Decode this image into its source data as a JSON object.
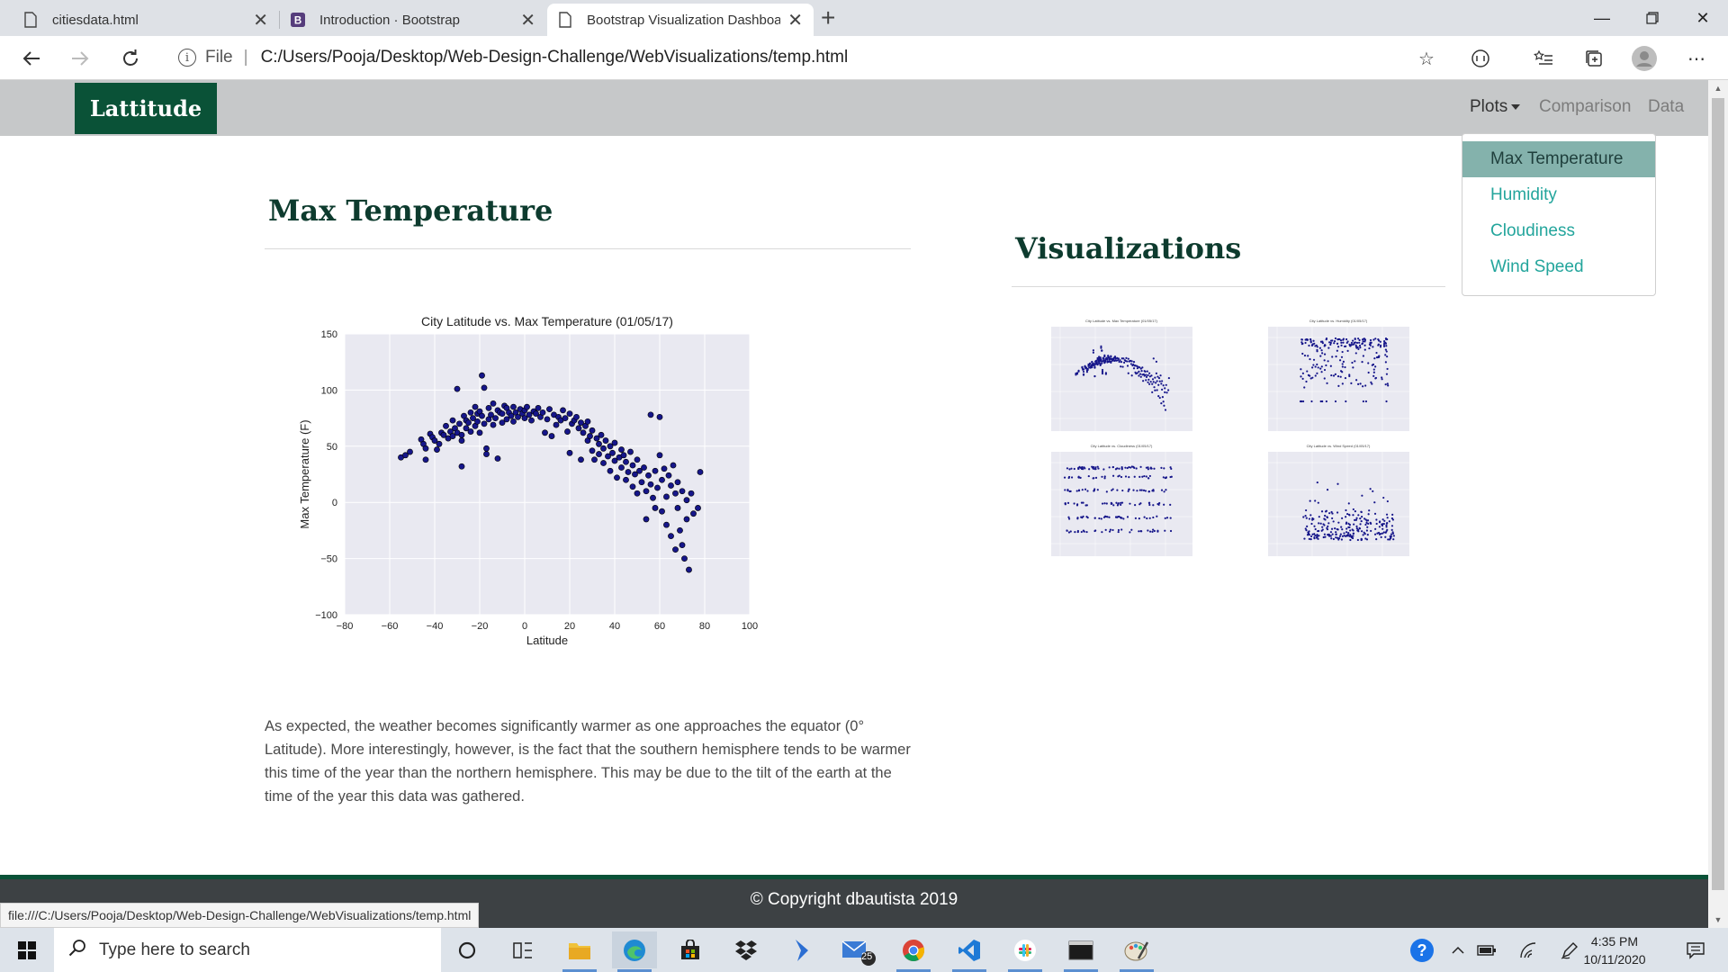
{
  "browser": {
    "tabs": [
      {
        "title": "citiesdata.html",
        "icon": "file-icon",
        "active": false
      },
      {
        "title": "Introduction · Bootstrap",
        "icon": "bootstrap-icon",
        "active": false
      },
      {
        "title": "Bootstrap Visualization Dashboa",
        "icon": "file-icon",
        "active": true
      }
    ],
    "new_tab_label": "+",
    "address": {
      "scheme_label": "File",
      "url": "C:/Users/Pooja/Desktop/Web-Design-Challenge/WebVisualizations/temp.html"
    },
    "status_url": "file:///C:/Users/Pooja/Desktop/Web-Design-Challenge/WebVisualizations/temp.html"
  },
  "site": {
    "brand": "Lattitude",
    "nav": {
      "plots": "Plots",
      "comparison": "Comparison",
      "data": "Data"
    },
    "dropdown": [
      "Max Temperature",
      "Humidity",
      "Cloudiness",
      "Wind Speed"
    ],
    "main_heading": "Max Temperature",
    "side_heading": "Visualizations",
    "description": "As expected, the weather becomes significantly warmer as one approaches the equator (0° Latitude). More interestingly, however, is the fact that the southern hemisphere tends to be warmer this time of the year than the northern hemisphere. This may be due to the tilt of the earth at the time of the year this data was gathered.",
    "footer": "© Copyright dbautista 2019"
  },
  "chart_data": {
    "type": "scatter",
    "title": "City Latitude vs. Max Temperature (01/05/17)",
    "xlabel": "Latitude",
    "ylabel": "Max Temperature (F)",
    "xlim": [
      -80,
      100
    ],
    "ylim": [
      -100,
      150
    ],
    "xticks": [
      -80,
      -60,
      -40,
      -20,
      0,
      20,
      40,
      60,
      80,
      100
    ],
    "yticks": [
      -100,
      -50,
      0,
      50,
      100,
      150
    ],
    "grid": true,
    "colors": {
      "point": "#16168a",
      "edge": "#000000",
      "bg": "#e9e9f1"
    },
    "series": [
      {
        "points": [
          [
            -55,
            40
          ],
          [
            -53,
            42
          ],
          [
            -51,
            45
          ],
          [
            -46,
            56
          ],
          [
            -45,
            52
          ],
          [
            -44,
            38
          ],
          [
            -44,
            48
          ],
          [
            -42,
            61
          ],
          [
            -41,
            58
          ],
          [
            -40,
            55
          ],
          [
            -39,
            47
          ],
          [
            -38,
            52
          ],
          [
            -37,
            62
          ],
          [
            -36,
            60
          ],
          [
            -35,
            68
          ],
          [
            -34,
            57
          ],
          [
            -33,
            63
          ],
          [
            -32,
            59
          ],
          [
            -32,
            73
          ],
          [
            -31,
            66
          ],
          [
            -30,
            62
          ],
          [
            -30,
            101
          ],
          [
            -29,
            70
          ],
          [
            -28,
            60
          ],
          [
            -28,
            55
          ],
          [
            -28,
            32
          ],
          [
            -27,
            77
          ],
          [
            -26,
            73
          ],
          [
            -26,
            66
          ],
          [
            -25,
            71
          ],
          [
            -24,
            80
          ],
          [
            -24,
            63
          ],
          [
            -23,
            75
          ],
          [
            -22,
            85
          ],
          [
            -22,
            68
          ],
          [
            -21,
            72
          ],
          [
            -21,
            79
          ],
          [
            -20,
            81
          ],
          [
            -20,
            62
          ],
          [
            -19,
            113
          ],
          [
            -19,
            77
          ],
          [
            -18,
            102
          ],
          [
            -18,
            70
          ],
          [
            -17,
            43
          ],
          [
            -17,
            48
          ],
          [
            -16,
            84
          ],
          [
            -16,
            74
          ],
          [
            -15,
            78
          ],
          [
            -14,
            88
          ],
          [
            -14,
            69
          ],
          [
            -13,
            75
          ],
          [
            -12,
            82
          ],
          [
            -12,
            39
          ],
          [
            -11,
            80
          ],
          [
            -10,
            79
          ],
          [
            -10,
            71
          ],
          [
            -9,
            86
          ],
          [
            -8,
            84
          ],
          [
            -8,
            74
          ],
          [
            -7,
            80
          ],
          [
            -6,
            77
          ],
          [
            -5,
            85
          ],
          [
            -5,
            72
          ],
          [
            -4,
            80
          ],
          [
            -3,
            76
          ],
          [
            -2,
            83
          ],
          [
            -1,
            79
          ],
          [
            0,
            75
          ],
          [
            0,
            82
          ],
          [
            1,
            85
          ],
          [
            2,
            78
          ],
          [
            3,
            73
          ],
          [
            4,
            81
          ],
          [
            5,
            79
          ],
          [
            6,
            84
          ],
          [
            7,
            76
          ],
          [
            8,
            80
          ],
          [
            9,
            62
          ],
          [
            10,
            74
          ],
          [
            11,
            83
          ],
          [
            12,
            59
          ],
          [
            13,
            78
          ],
          [
            14,
            69
          ],
          [
            15,
            76
          ],
          [
            16,
            73
          ],
          [
            17,
            82
          ],
          [
            18,
            75
          ],
          [
            19,
            63
          ],
          [
            20,
            79
          ],
          [
            20,
            44
          ],
          [
            21,
            70
          ],
          [
            22,
            73
          ],
          [
            23,
            76
          ],
          [
            24,
            66
          ],
          [
            25,
            71
          ],
          [
            25,
            38
          ],
          [
            26,
            62
          ],
          [
            27,
            68
          ],
          [
            28,
            55
          ],
          [
            28,
            72
          ],
          [
            29,
            59
          ],
          [
            30,
            64
          ],
          [
            30,
            46
          ],
          [
            31,
            38
          ],
          [
            32,
            57
          ],
          [
            33,
            52
          ],
          [
            33,
            43
          ],
          [
            34,
            60
          ],
          [
            35,
            35
          ],
          [
            35,
            48
          ],
          [
            36,
            55
          ],
          [
            37,
            41
          ],
          [
            38,
            28
          ],
          [
            38,
            50
          ],
          [
            39,
            44
          ],
          [
            40,
            53
          ],
          [
            40,
            37
          ],
          [
            41,
            22
          ],
          [
            42,
            40
          ],
          [
            43,
            31
          ],
          [
            43,
            47
          ],
          [
            44,
            42
          ],
          [
            45,
            20
          ],
          [
            45,
            36
          ],
          [
            46,
            27
          ],
          [
            47,
            45
          ],
          [
            48,
            33
          ],
          [
            48,
            14
          ],
          [
            49,
            25
          ],
          [
            50,
            38
          ],
          [
            50,
            8
          ],
          [
            51,
            28
          ],
          [
            52,
            18
          ],
          [
            53,
            31
          ],
          [
            54,
            10
          ],
          [
            54,
            -15
          ],
          [
            55,
            24
          ],
          [
            56,
            16
          ],
          [
            56,
            78
          ],
          [
            57,
            4
          ],
          [
            58,
            28
          ],
          [
            58,
            -5
          ],
          [
            59,
            13
          ],
          [
            60,
            76
          ],
          [
            60,
            42
          ],
          [
            61,
            20
          ],
          [
            61,
            -8
          ],
          [
            62,
            30
          ],
          [
            63,
            5
          ],
          [
            63,
            -20
          ],
          [
            64,
            24
          ],
          [
            65,
            15
          ],
          [
            65,
            -30
          ],
          [
            66,
            33
          ],
          [
            67,
            8
          ],
          [
            67,
            -42
          ],
          [
            68,
            -5
          ],
          [
            68,
            18
          ],
          [
            69,
            -25
          ],
          [
            70,
            10
          ],
          [
            70,
            -38
          ],
          [
            71,
            -50
          ],
          [
            72,
            -15
          ],
          [
            72,
            2
          ],
          [
            73,
            -60
          ],
          [
            74,
            8
          ],
          [
            75,
            -10
          ],
          [
            77,
            -5
          ],
          [
            78,
            27
          ]
        ]
      }
    ]
  },
  "thumbnails": [
    {
      "name": "City Latitude vs. Max Temperature (01/05/17)"
    },
    {
      "name": "City Latitude vs. Humidity (01/05/17)"
    },
    {
      "name": "City Latitude vs. Cloudiness (01/05/17)"
    },
    {
      "name": "City Latitude vs. Wind Speed (01/05/17)"
    }
  ],
  "taskbar": {
    "search_placeholder": "Type here to search",
    "mail_badge": "25",
    "time": "4:35 PM",
    "date": "10/11/2020"
  }
}
